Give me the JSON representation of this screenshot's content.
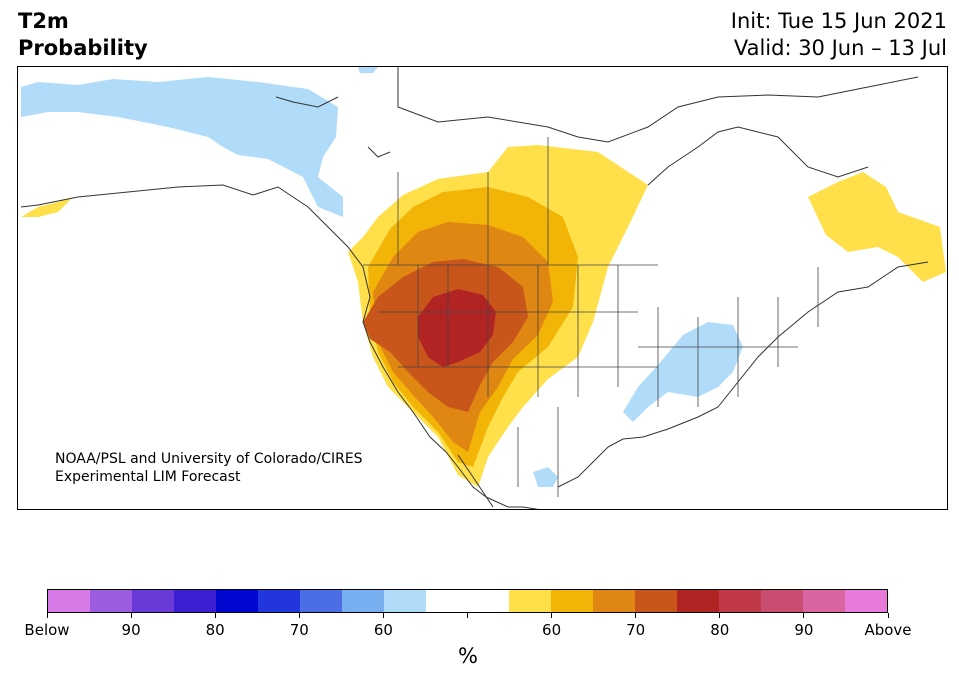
{
  "title": {
    "line1": "T2m",
    "line2": "Probability"
  },
  "header": {
    "init": "Init: Tue 15 Jun 2021",
    "valid": "Valid: 30 Jun – 13 Jul"
  },
  "credit": {
    "line1": "NOAA/PSL and University of Colorado/CIRES",
    "line2": "Experimental LIM Forecast"
  },
  "colorbar": {
    "colors": [
      "#d77ae8",
      "#9c5ce0",
      "#6a3ad8",
      "#3c1fd0",
      "#0008cf",
      "#2236dd",
      "#4c6ee4",
      "#78aff0",
      "#b0dcfa",
      "#ffffff",
      "#ffffff",
      "#ffe04a",
      "#f2b507",
      "#df8712",
      "#c8561a",
      "#b22423",
      "#c13849",
      "#c84d71",
      "#d964a0",
      "#e87ad9"
    ],
    "tick_labels": [
      "Below",
      "90",
      "80",
      "70",
      "60",
      "",
      "60",
      "70",
      "80",
      "90",
      "Above"
    ],
    "units": "%"
  },
  "colors": {
    "below_light": "#b0dcfa",
    "above_60": "#ffe04a",
    "above_65": "#f2b507",
    "above_70": "#df8712",
    "above_75": "#c8561a",
    "above_80": "#b22423"
  }
}
